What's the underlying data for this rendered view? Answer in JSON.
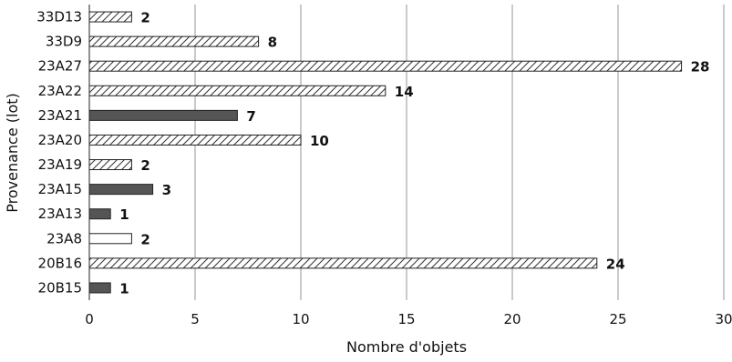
{
  "chart_data": {
    "type": "bar",
    "orientation": "horizontal",
    "title": "",
    "xlabel": "Nombre d'objets",
    "ylabel": "Provenance (lot)",
    "xlim": [
      0,
      30
    ],
    "xticks": [
      0,
      5,
      10,
      15,
      20,
      25,
      30
    ],
    "grid": "vertical",
    "legend": "none",
    "categories": [
      "33D13",
      "33D9",
      "23A27",
      "23A22",
      "23A21",
      "23A20",
      "23A19",
      "23A15",
      "23A13",
      "23A8",
      "20B16",
      "20B15"
    ],
    "values": [
      2,
      8,
      28,
      14,
      7,
      10,
      2,
      3,
      1,
      2,
      24,
      1
    ],
    "fills": [
      "hatched",
      "hatched",
      "hatched",
      "hatched",
      "solid-dark",
      "hatched",
      "hatched",
      "solid-dark",
      "solid-dark",
      "white",
      "hatched",
      "solid-dark"
    ],
    "colors": {
      "dark": "#555555",
      "outline": "#222222",
      "grid": "#a6a6a6",
      "hatch": "#333333"
    }
  }
}
